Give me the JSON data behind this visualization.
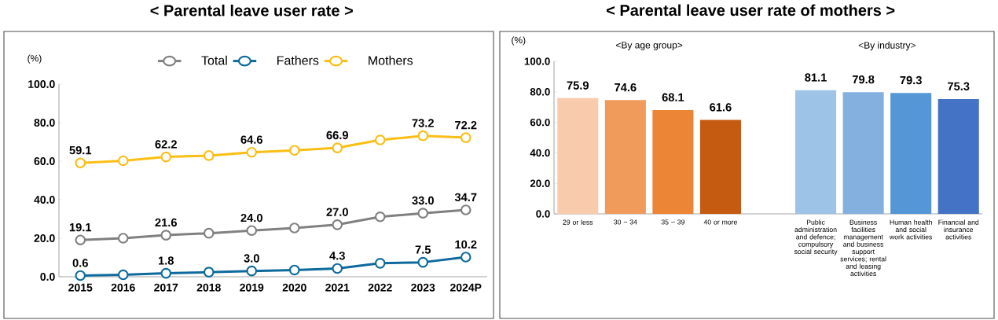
{
  "chart_data": [
    {
      "type": "line",
      "title": "< Parental leave user rate >",
      "ylabel": "(%)",
      "categories": [
        "2015",
        "2016",
        "2017",
        "2018",
        "2019",
        "2020",
        "2021",
        "2022",
        "2023",
        "2024P"
      ],
      "series": [
        {
          "name": "Total",
          "color": "#808080",
          "values": [
            19.1,
            20.0,
            21.6,
            22.6,
            24.0,
            25.3,
            27.0,
            31.1,
            33.0,
            34.7
          ],
          "value_labels": [
            "19.1",
            null,
            "21.6",
            null,
            "24.0",
            null,
            "27.0",
            null,
            "33.0",
            "34.7"
          ]
        },
        {
          "name": "Fathers",
          "color": "#0E6A9C",
          "values": [
            0.6,
            1.0,
            1.8,
            2.4,
            3.0,
            3.5,
            4.3,
            7.0,
            7.5,
            10.2
          ],
          "value_labels": [
            "0.6",
            null,
            "1.8",
            null,
            "3.0",
            null,
            "4.3",
            null,
            "7.5",
            "10.2"
          ]
        },
        {
          "name": "Mothers",
          "color": "#FBBE14",
          "values": [
            59.1,
            60.2,
            62.2,
            62.9,
            64.6,
            65.6,
            66.9,
            71.0,
            73.2,
            72.2
          ],
          "value_labels": [
            "59.1",
            null,
            "62.2",
            null,
            "64.6",
            null,
            "66.9",
            null,
            "73.2",
            "72.2"
          ]
        }
      ],
      "legend": "top",
      "marker": "circle",
      "ylim": [
        0,
        100
      ],
      "yticks": [
        {
          "value": 0,
          "label": "0.0"
        },
        {
          "value": 20,
          "label": "20.0"
        },
        {
          "value": 40,
          "label": "40.0"
        },
        {
          "value": 60,
          "label": "60.0"
        },
        {
          "value": 80,
          "label": "80.0"
        },
        {
          "value": 100,
          "label": "100.0"
        }
      ]
    },
    {
      "type": "bar",
      "title": "< Parental leave user rate of mothers >",
      "ylabel": "(%)",
      "annotations": [
        "<By age group>",
        "<By industry>"
      ],
      "categories": [
        "29 or less",
        "30 ~ 34",
        "35 ~ 39",
        "40 or more",
        null,
        "Public administration and defence; compulsory social security",
        "Business facilities management and business support services; rental and leasing activities",
        "Human health and social work activities",
        "Financial and insurance activities"
      ],
      "values": [
        75.9,
        74.6,
        68.1,
        61.6,
        null,
        81.1,
        79.8,
        79.3,
        75.3
      ],
      "colors": [
        "#F8CBAD",
        "#F09B5C",
        "#ED8537",
        "#C55A11",
        null,
        "#9DC3E6",
        "#84B0E0",
        "#5596D6",
        "#4472C4"
      ],
      "data_labels": true,
      "ylim": [
        0,
        100
      ],
      "yticks": [
        {
          "value": 0,
          "label": "0.0"
        },
        {
          "value": 20,
          "label": "20.0"
        },
        {
          "value": 40,
          "label": "40.0"
        },
        {
          "value": 60,
          "label": "60.0"
        },
        {
          "value": 80,
          "label": "80.0"
        },
        {
          "value": 100,
          "label": "100.0"
        }
      ]
    }
  ]
}
